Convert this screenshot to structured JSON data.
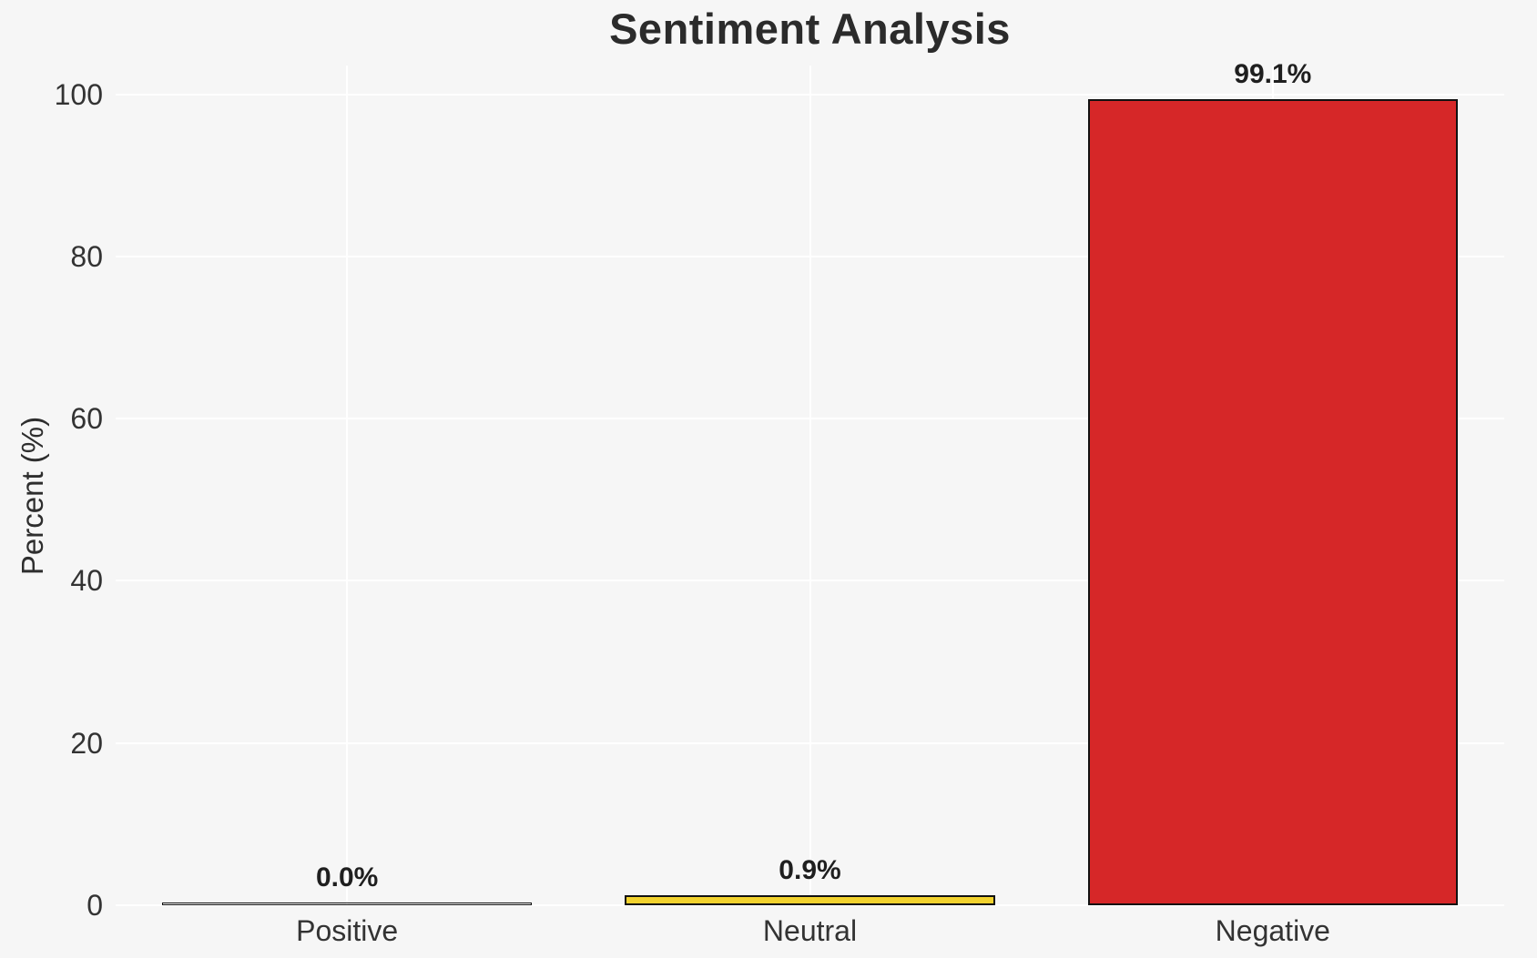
{
  "figure": {
    "background_color": "#f6f6f6",
    "grid_color": "#ffffff"
  },
  "chart_data": {
    "type": "bar",
    "title": "Sentiment Analysis",
    "xlabel": "",
    "ylabel": "Percent (%)",
    "categories": [
      "Positive",
      "Neutral",
      "Negative"
    ],
    "values": [
      0.0,
      0.9,
      99.1
    ],
    "value_labels": [
      "0.0%",
      "0.9%",
      "99.1%"
    ],
    "bar_colors": [
      null,
      "#f2d22e",
      "#d62728"
    ],
    "bar_edge_color": "#111111",
    "yticks": [
      0,
      20,
      40,
      60,
      80,
      100
    ],
    "ylim": [
      0,
      103.5
    ],
    "grid": "both",
    "legend_position": "none"
  }
}
